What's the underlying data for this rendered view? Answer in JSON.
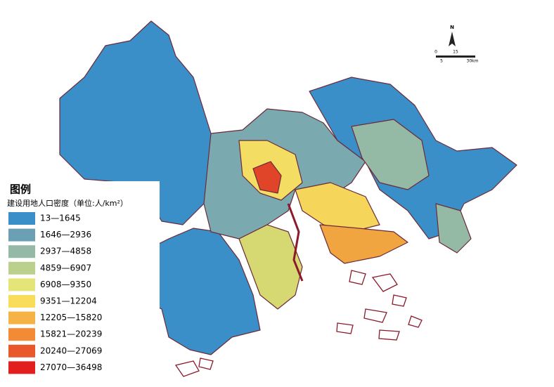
{
  "legend": {
    "title": "图例",
    "subtitle": "建设用地人口密度（单位:人/km²）",
    "items": [
      {
        "label": "13—1645",
        "color": "#3a8fc8"
      },
      {
        "label": "1646—2936",
        "color": "#6a9fb4"
      },
      {
        "label": "2937—4858",
        "color": "#94b9a4"
      },
      {
        "label": "4859—6907",
        "color": "#bcd08e"
      },
      {
        "label": "6908—9350",
        "color": "#e4e478"
      },
      {
        "label": "9351—12204",
        "color": "#f8dc5a"
      },
      {
        "label": "12205—15820",
        "color": "#f5b245"
      },
      {
        "label": "15821—20239",
        "color": "#f28a36"
      },
      {
        "label": "20240—27069",
        "color": "#e8582a"
      },
      {
        "label": "27070—36498",
        "color": "#e21f1f"
      }
    ]
  },
  "compass": {
    "label": "N"
  },
  "scale": {
    "labels": [
      "0",
      "5",
      "15",
      "30km"
    ]
  }
}
